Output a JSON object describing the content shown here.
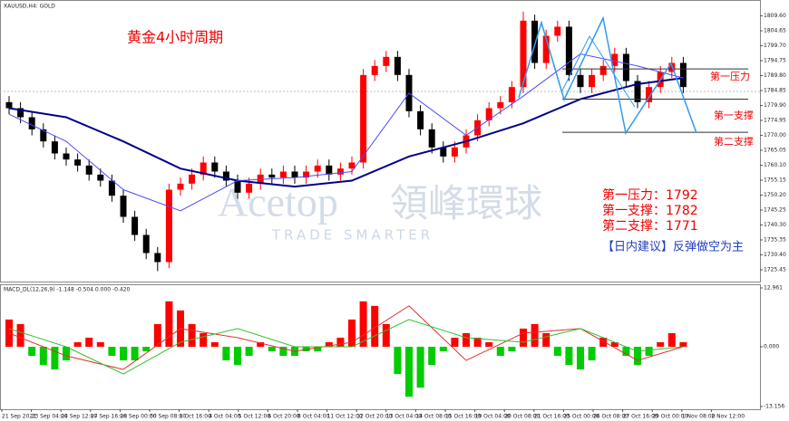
{
  "chart_data": {
    "type": "candlestick",
    "symbol_label": "XAUUSD,H4: GOLD",
    "title": "黄金4小时周期",
    "watermark": {
      "brand": "Acetop",
      "brand_cn": "領峰環球",
      "slogan": "TRADE SMARTER"
    },
    "annotations": [
      "第一压力：1792",
      "第一支撑：1782",
      "第二支撑：1771",
      "【日内建议】反弹做空为主"
    ],
    "up_color": "#ff0000",
    "down_color": "#000000",
    "open": [
      1781,
      1779,
      1776,
      1772,
      1768,
      1764,
      1762,
      1760,
      1757,
      1755,
      1750,
      1743,
      1737,
      1731,
      1728,
      1752,
      1754,
      1757,
      1761,
      1758,
      1755,
      1751,
      1754,
      1757,
      1756,
      1758,
      1756,
      1758,
      1760,
      1757,
      1759,
      1761,
      1790,
      1793,
      1796,
      1790,
      1778,
      1772,
      1766,
      1763,
      1766,
      1770,
      1775,
      1779,
      1781,
      1786,
      1808,
      1794,
      1803,
      1806,
      1790,
      1786,
      1790,
      1793,
      1797,
      1788,
      1781,
      1786,
      1791,
      1794
    ],
    "high": [
      1783,
      1781,
      1778,
      1774,
      1770,
      1766,
      1764,
      1762,
      1759,
      1757,
      1752,
      1745,
      1739,
      1733,
      1754,
      1756,
      1759,
      1763,
      1763,
      1760,
      1757,
      1756,
      1759,
      1759,
      1760,
      1760,
      1760,
      1762,
      1762,
      1761,
      1763,
      1792,
      1795,
      1798,
      1798,
      1792,
      1780,
      1774,
      1768,
      1768,
      1772,
      1777,
      1781,
      1783,
      1788,
      1811,
      1810,
      1805,
      1808,
      1808,
      1792,
      1792,
      1795,
      1799,
      1799,
      1790,
      1788,
      1793,
      1796,
      1796
    ],
    "low": [
      1777,
      1774,
      1770,
      1766,
      1762,
      1760,
      1758,
      1755,
      1753,
      1748,
      1741,
      1735,
      1729,
      1725,
      1726,
      1750,
      1752,
      1755,
      1756,
      1753,
      1749,
      1749,
      1752,
      1754,
      1754,
      1754,
      1754,
      1756,
      1755,
      1755,
      1757,
      1759,
      1788,
      1791,
      1788,
      1776,
      1770,
      1764,
      1761,
      1761,
      1764,
      1768,
      1773,
      1777,
      1779,
      1784,
      1792,
      1792,
      1801,
      1788,
      1784,
      1784,
      1788,
      1791,
      1786,
      1779,
      1779,
      1784,
      1789,
      1784
    ],
    "close": [
      1779,
      1776,
      1772,
      1768,
      1764,
      1762,
      1760,
      1757,
      1755,
      1750,
      1743,
      1737,
      1731,
      1728,
      1752,
      1754,
      1757,
      1761,
      1758,
      1755,
      1751,
      1754,
      1757,
      1756,
      1758,
      1756,
      1758,
      1760,
      1757,
      1759,
      1761,
      1790,
      1793,
      1796,
      1790,
      1778,
      1772,
      1766,
      1763,
      1766,
      1770,
      1775,
      1779,
      1781,
      1786,
      1808,
      1794,
      1803,
      1806,
      1790,
      1786,
      1790,
      1793,
      1797,
      1788,
      1781,
      1786,
      1791,
      1794,
      1786
    ],
    "moving_averages": [
      {
        "color": "#00008b",
        "width": 2,
        "x": [
          0,
          5,
          10,
          15,
          20,
          25,
          30,
          35,
          40,
          45,
          50,
          55,
          59
        ],
        "values": [
          1779,
          1776,
          1768,
          1759,
          1755,
          1753,
          1755,
          1763,
          1768,
          1774,
          1782,
          1787,
          1789
        ]
      },
      {
        "color": "#4b4bff",
        "width": 1,
        "x": [
          0,
          5,
          10,
          15,
          20,
          25,
          30,
          35,
          40,
          45,
          50,
          55,
          59
        ],
        "values": [
          1777,
          1768,
          1752,
          1745,
          1755,
          1756,
          1758,
          1784,
          1770,
          1783,
          1797,
          1793,
          1789
        ]
      }
    ],
    "levels": [
      {
        "name": "第一压力",
        "value": 1792
      },
      {
        "name": "第一支撑",
        "value": 1782
      },
      {
        "name": "第二支撑",
        "value": 1771
      }
    ],
    "ylim": [
      1721.85,
      1813.95
    ],
    "yticks": [
      1725.45,
      {
        "value": 1730.4,
        "label": "1730.40"
      },
      1735.35,
      {
        "value": 1740.3,
        "label": "1740.30"
      },
      1745.25,
      {
        "value": 1750.2,
        "label": "1750.20"
      },
      1755.15,
      {
        "value": 1760.1,
        "label": "1760.10"
      },
      1765.05,
      {
        "value": 1770,
        "label": "1770.00"
      },
      1774.95,
      {
        "value": 1779.9,
        "label": "1779.90"
      },
      1784.85,
      {
        "value": 1789.8,
        "label": "1789.80"
      },
      1794.75,
      {
        "value": 1799.7,
        "label": "1799.70"
      },
      1804.65,
      {
        "value": 1809.6,
        "label": "1809.60"
      }
    ],
    "time_labels": [
      "21 Sep 2021",
      "23 Sep 04:00",
      "24 Sep 12:00",
      "27 Sep 16:00",
      "28 Sep 00:00",
      "30 Sep 08:00",
      "1 Oct 16:00",
      "4 Oct 04:00",
      "5 Oct 12:00",
      "6 Oct 20:00",
      "8 Oct 04:00",
      "11 Oct 12:00",
      "12 Oct 20:00",
      "13 Oct 04:00",
      "14 Oct 08:00",
      "15 Oct 16:00",
      "19 Oct 04:00",
      "20 Oct 08:00",
      "21 Oct 16:00",
      "25 Oct 00:00",
      "26 Oct 08:00",
      "27 Oct 16:00",
      "29 Oct 00:00",
      "1 Nov 08:00",
      "2 Nov 12:00"
    ],
    "macd": {
      "label": "MACD_DL(12,26,9) -1.148 -0.504 0.000 -0.420",
      "pos_color": "#ff0000",
      "neg_color": "#00cc00",
      "histogram": [
        6,
        5,
        -2,
        -4,
        -5,
        -3,
        1,
        2,
        1,
        -2,
        -3,
        -3,
        -1,
        5,
        10,
        8,
        5,
        3,
        1,
        -3,
        -4,
        -2,
        1,
        -1,
        -2,
        -2,
        -1,
        -1,
        1,
        2,
        6,
        10,
        9,
        5,
        -6,
        -11,
        -9,
        -4,
        -1,
        2,
        3,
        2,
        1,
        -2,
        -1,
        4,
        5,
        3,
        -2,
        -4,
        -5,
        -3,
        2,
        1,
        -2,
        -4,
        -2,
        1,
        3,
        1
      ],
      "lines": [
        {
          "color": "#e03030",
          "x": [
            0,
            5,
            10,
            15,
            20,
            25,
            30,
            35,
            40,
            45,
            50,
            55,
            59
          ],
          "values": [
            3,
            -2,
            -5,
            4,
            2,
            -1,
            1,
            9,
            -3,
            3,
            4,
            -3,
            0
          ]
        },
        {
          "color": "#30c030",
          "x": [
            0,
            5,
            10,
            15,
            20,
            25,
            30,
            35,
            40,
            45,
            50,
            55,
            59
          ],
          "values": [
            4,
            0,
            -6,
            1,
            4,
            0,
            0,
            6,
            2,
            1,
            4,
            -1,
            0
          ]
        }
      ],
      "ylim": [
        -13.156,
        12.961
      ],
      "yticks": [
        -13.156,
        {
          "value": 0,
          "label": "0.000"
        },
        12.961
      ]
    }
  }
}
